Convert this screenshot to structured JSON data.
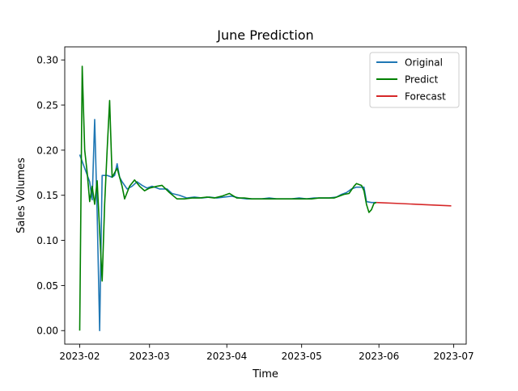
{
  "chart_data": {
    "type": "line",
    "title": "June Prediction",
    "xlabel": "Time",
    "ylabel": "Sales Volumes",
    "x_axis_type": "date",
    "xlim": [
      "2023-01-26",
      "2023-07-06"
    ],
    "ylim": [
      -0.015,
      0.3145
    ],
    "x_ticks": [
      "2023-02",
      "2023-03",
      "2023-04",
      "2023-05",
      "2023-06",
      "2023-07"
    ],
    "x_tick_dates": [
      "2023-02-01",
      "2023-03-01",
      "2023-04-01",
      "2023-05-01",
      "2023-06-01",
      "2023-07-01"
    ],
    "y_ticks": [
      "0.00",
      "0.05",
      "0.10",
      "0.15",
      "0.20",
      "0.25",
      "0.30"
    ],
    "y_tick_values": [
      0.0,
      0.05,
      0.1,
      0.15,
      0.2,
      0.25,
      0.3
    ],
    "grid": false,
    "legend_position": "top-right",
    "series": [
      {
        "name": "Original",
        "color": "#1f77b4",
        "points": [
          [
            "2023-02-01",
            0.195
          ],
          [
            "2023-02-03",
            0.18
          ],
          [
            "2023-02-05",
            0.165
          ],
          [
            "2023-02-06",
            0.145
          ],
          [
            "2023-02-07",
            0.234
          ],
          [
            "2023-02-08",
            0.13
          ],
          [
            "2023-02-09",
            0.0
          ],
          [
            "2023-02-10",
            0.172
          ],
          [
            "2023-02-12",
            0.172
          ],
          [
            "2023-02-14",
            0.17
          ],
          [
            "2023-02-15",
            0.172
          ],
          [
            "2023-02-16",
            0.185
          ],
          [
            "2023-02-17",
            0.17
          ],
          [
            "2023-02-18",
            0.165
          ],
          [
            "2023-02-20",
            0.157
          ],
          [
            "2023-02-22",
            0.16
          ],
          [
            "2023-02-24",
            0.165
          ],
          [
            "2023-02-26",
            0.161
          ],
          [
            "2023-02-28",
            0.158
          ],
          [
            "2023-03-02",
            0.16
          ],
          [
            "2023-03-05",
            0.157
          ],
          [
            "2023-03-08",
            0.157
          ],
          [
            "2023-03-10",
            0.152
          ],
          [
            "2023-03-13",
            0.15
          ],
          [
            "2023-03-16",
            0.147
          ],
          [
            "2023-03-19",
            0.148
          ],
          [
            "2023-03-22",
            0.147
          ],
          [
            "2023-03-25",
            0.148
          ],
          [
            "2023-03-28",
            0.147
          ],
          [
            "2023-03-31",
            0.148
          ],
          [
            "2023-04-03",
            0.149
          ],
          [
            "2023-04-06",
            0.147
          ],
          [
            "2023-04-09",
            0.146
          ],
          [
            "2023-04-12",
            0.146
          ],
          [
            "2023-04-15",
            0.146
          ],
          [
            "2023-04-18",
            0.147
          ],
          [
            "2023-04-21",
            0.146
          ],
          [
            "2023-04-24",
            0.146
          ],
          [
            "2023-04-27",
            0.146
          ],
          [
            "2023-04-30",
            0.147
          ],
          [
            "2023-05-03",
            0.146
          ],
          [
            "2023-05-06",
            0.147
          ],
          [
            "2023-05-09",
            0.147
          ],
          [
            "2023-05-12",
            0.147
          ],
          [
            "2023-05-15",
            0.148
          ],
          [
            "2023-05-17",
            0.151
          ],
          [
            "2023-05-19",
            0.153
          ],
          [
            "2023-05-21",
            0.157
          ],
          [
            "2023-05-23",
            0.159
          ],
          [
            "2023-05-25",
            0.159
          ],
          [
            "2023-05-26",
            0.159
          ],
          [
            "2023-05-27",
            0.143
          ],
          [
            "2023-05-29",
            0.142
          ],
          [
            "2023-05-31",
            0.142
          ]
        ]
      },
      {
        "name": "Predict",
        "color": "#008000",
        "points": [
          [
            "2023-02-01",
            0.0
          ],
          [
            "2023-02-02",
            0.293
          ],
          [
            "2023-02-03",
            0.2
          ],
          [
            "2023-02-04",
            0.175
          ],
          [
            "2023-02-05",
            0.143
          ],
          [
            "2023-02-06",
            0.16
          ],
          [
            "2023-02-07",
            0.14
          ],
          [
            "2023-02-08",
            0.166
          ],
          [
            "2023-02-09",
            0.11
          ],
          [
            "2023-02-10",
            0.055
          ],
          [
            "2023-02-11",
            0.14
          ],
          [
            "2023-02-12",
            0.2
          ],
          [
            "2023-02-13",
            0.255
          ],
          [
            "2023-02-14",
            0.17
          ],
          [
            "2023-02-16",
            0.18
          ],
          [
            "2023-02-18",
            0.16
          ],
          [
            "2023-02-19",
            0.146
          ],
          [
            "2023-02-21",
            0.16
          ],
          [
            "2023-02-23",
            0.167
          ],
          [
            "2023-02-25",
            0.16
          ],
          [
            "2023-02-27",
            0.155
          ],
          [
            "2023-03-01",
            0.158
          ],
          [
            "2023-03-04",
            0.16
          ],
          [
            "2023-03-06",
            0.161
          ],
          [
            "2023-03-09",
            0.153
          ],
          [
            "2023-03-12",
            0.146
          ],
          [
            "2023-03-15",
            0.146
          ],
          [
            "2023-03-18",
            0.147
          ],
          [
            "2023-03-21",
            0.147
          ],
          [
            "2023-03-24",
            0.148
          ],
          [
            "2023-03-27",
            0.147
          ],
          [
            "2023-03-30",
            0.149
          ],
          [
            "2023-04-02",
            0.152
          ],
          [
            "2023-04-05",
            0.147
          ],
          [
            "2023-04-08",
            0.147
          ],
          [
            "2023-04-11",
            0.146
          ],
          [
            "2023-04-14",
            0.146
          ],
          [
            "2023-04-17",
            0.146
          ],
          [
            "2023-04-20",
            0.146
          ],
          [
            "2023-04-23",
            0.146
          ],
          [
            "2023-04-26",
            0.146
          ],
          [
            "2023-04-29",
            0.146
          ],
          [
            "2023-05-02",
            0.146
          ],
          [
            "2023-05-05",
            0.146
          ],
          [
            "2023-05-08",
            0.147
          ],
          [
            "2023-05-11",
            0.147
          ],
          [
            "2023-05-14",
            0.147
          ],
          [
            "2023-05-16",
            0.149
          ],
          [
            "2023-05-18",
            0.151
          ],
          [
            "2023-05-20",
            0.152
          ],
          [
            "2023-05-22",
            0.16
          ],
          [
            "2023-05-23",
            0.163
          ],
          [
            "2023-05-25",
            0.161
          ],
          [
            "2023-05-26",
            0.155
          ],
          [
            "2023-05-27",
            0.14
          ],
          [
            "2023-05-28",
            0.131
          ],
          [
            "2023-05-29",
            0.134
          ],
          [
            "2023-05-30",
            0.141
          ],
          [
            "2023-05-31",
            0.142
          ]
        ]
      },
      {
        "name": "Forecast",
        "color": "#d62728",
        "points": [
          [
            "2023-05-31",
            0.142
          ],
          [
            "2023-06-10",
            0.1408
          ],
          [
            "2023-06-20",
            0.1395
          ],
          [
            "2023-06-30",
            0.1383
          ]
        ]
      }
    ]
  }
}
